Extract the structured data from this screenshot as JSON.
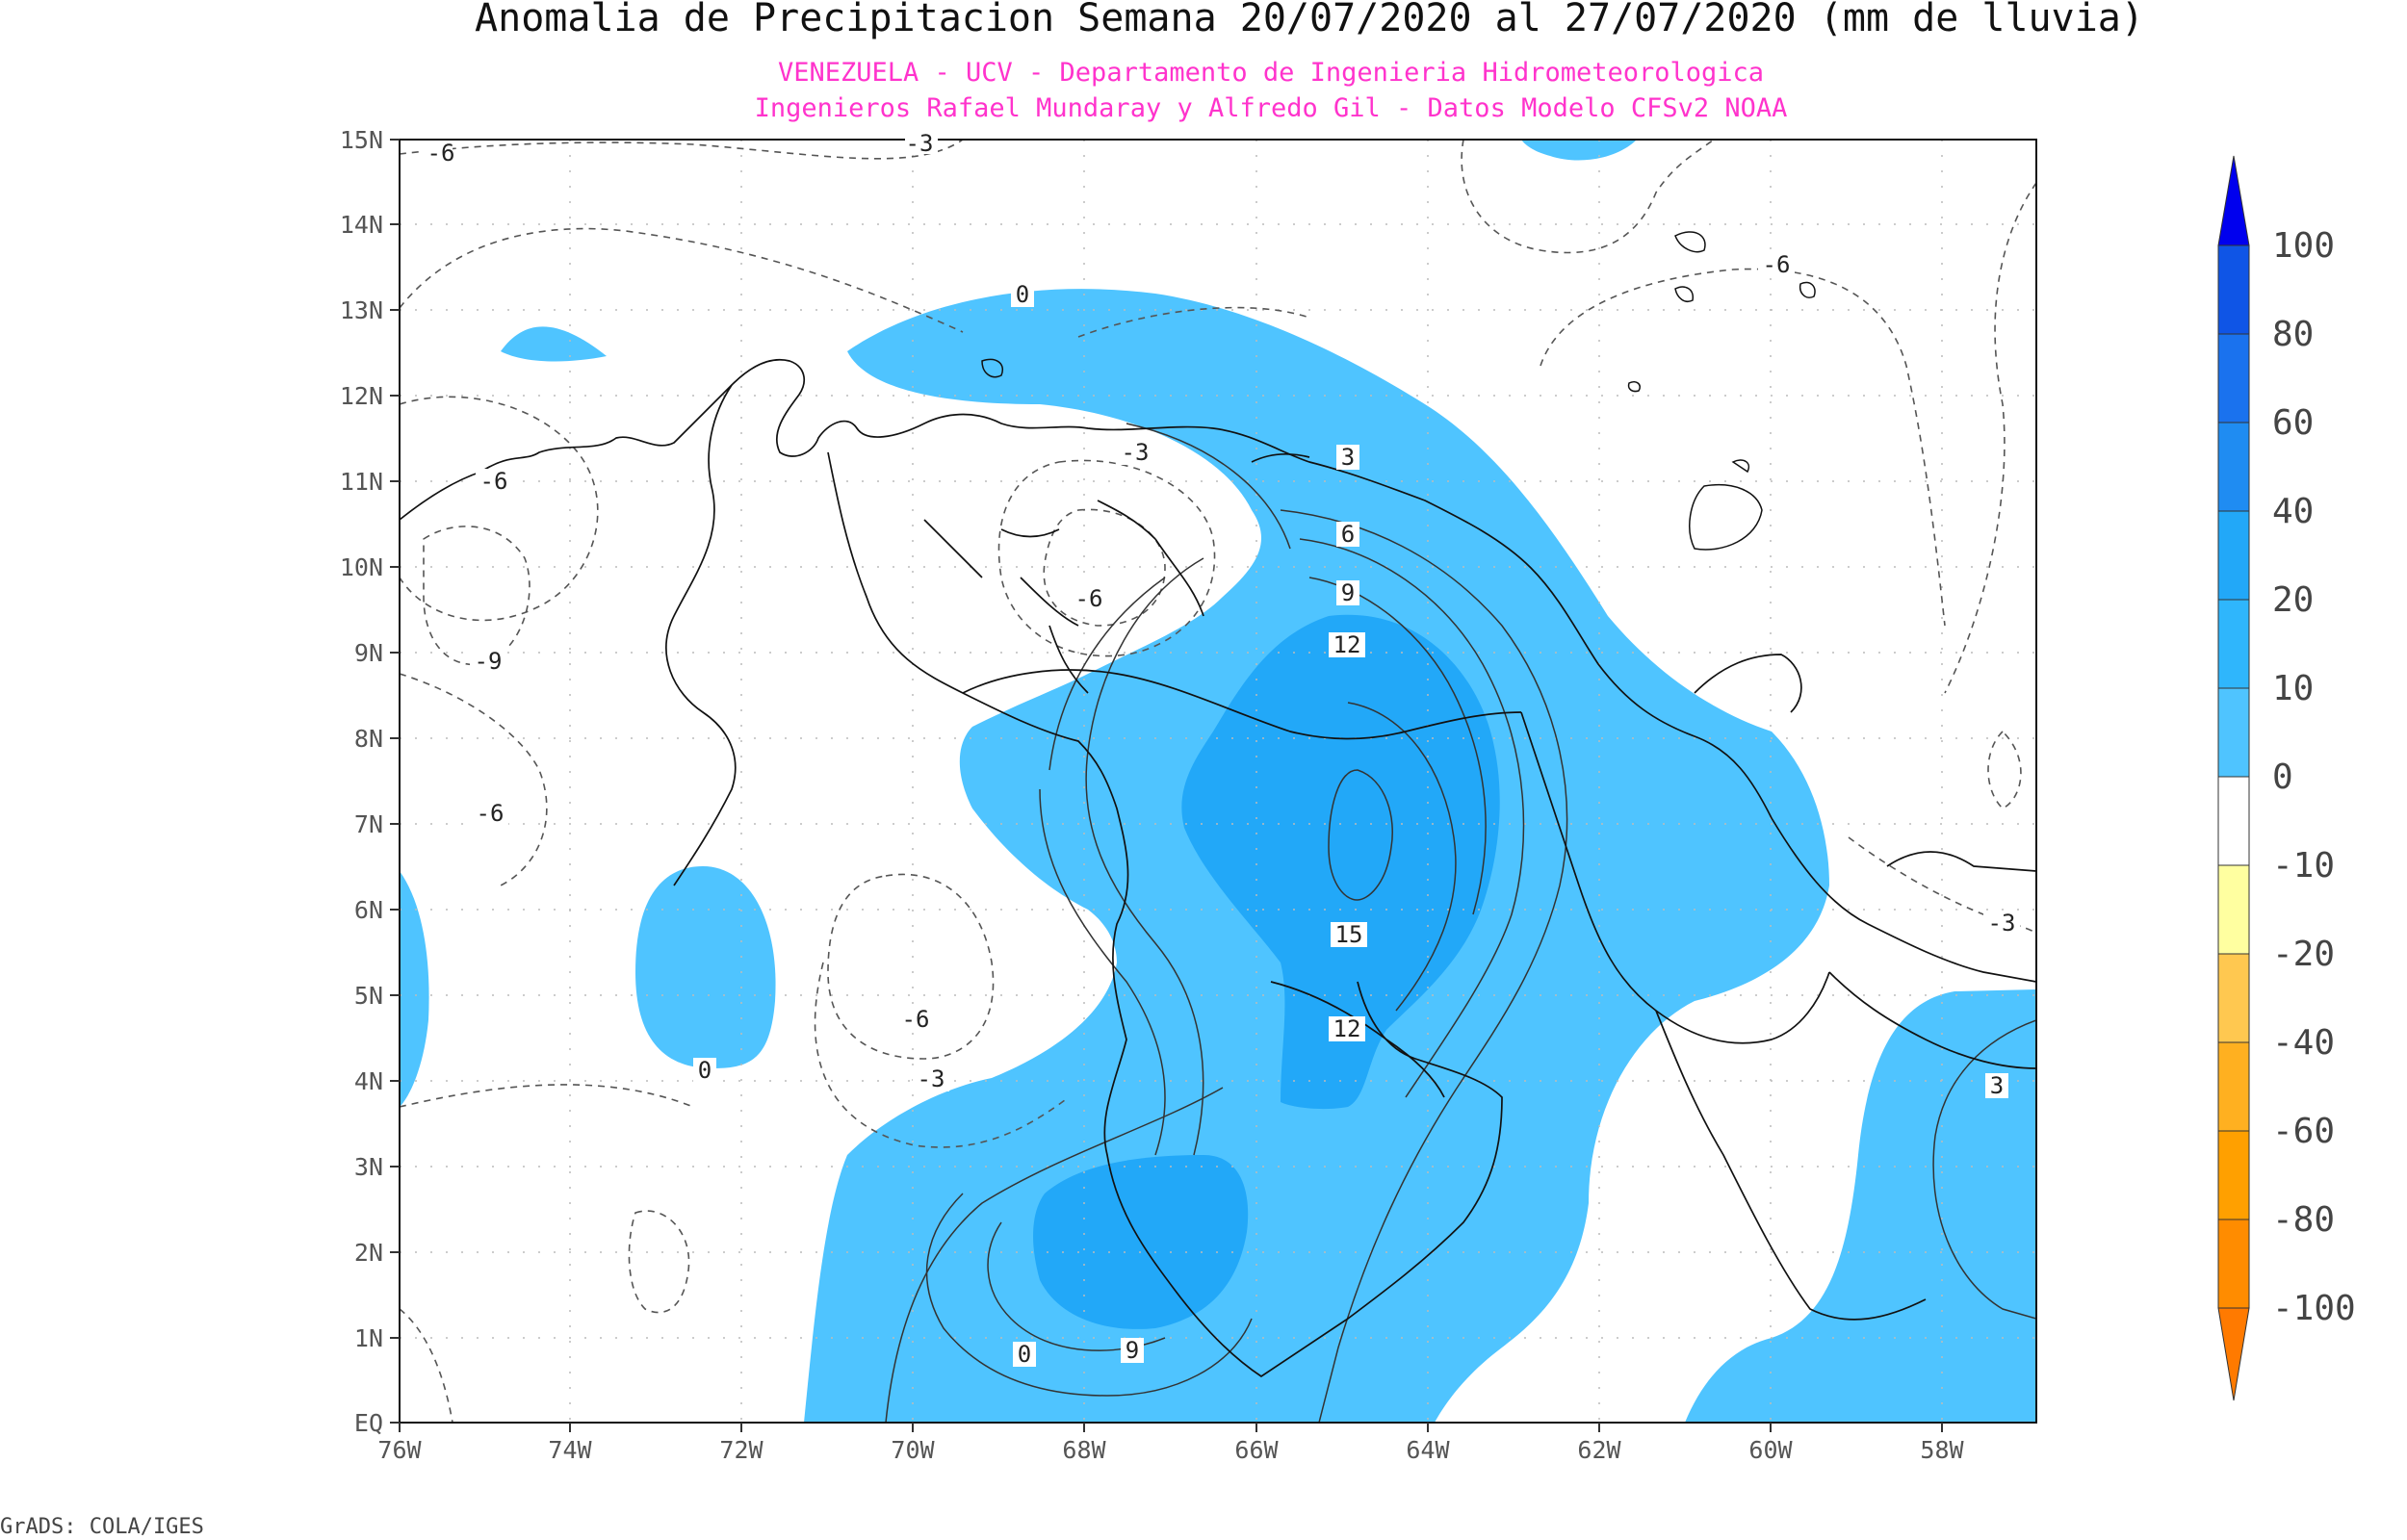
{
  "title": "Anomalia de Precipitacion Semana 20/07/2020 al 27/07/2020 (mm de lluvia)",
  "subtitle_line1": "VENEZUELA - UCV - Departamento de Ingenieria Hidrometeorologica",
  "subtitle_line2": "Ingenieros Rafael Mundaray y Alfredo Gil - Datos Modelo CFSv2 NOAA",
  "footer": "GrADS: COLA/IGES",
  "colors": {
    "title": "#111111",
    "subtitle": "#ff33cc",
    "light_blue": "#4fc4ff",
    "mid_blue": "#22a8f8"
  },
  "x_ticks": [
    "76W",
    "74W",
    "72W",
    "70W",
    "68W",
    "66W",
    "64W",
    "62W",
    "60W",
    "58W"
  ],
  "y_ticks": [
    "EQ",
    "1N",
    "2N",
    "3N",
    "4N",
    "5N",
    "6N",
    "7N",
    "8N",
    "9N",
    "10N",
    "11N",
    "12N",
    "13N",
    "14N",
    "15N"
  ],
  "contour_labels": [
    "-6",
    "-3",
    "0",
    "-6",
    "-9",
    "-6",
    "-3",
    "-6",
    "0",
    "-6",
    "-3",
    "0",
    "3",
    "6",
    "9",
    "12",
    "15",
    "12",
    "9",
    "-6",
    "-3",
    "3"
  ],
  "colorbar": {
    "labels": [
      "100",
      "80",
      "60",
      "40",
      "20",
      "10",
      "0",
      "-10",
      "-20",
      "-40",
      "-60",
      "-80",
      "-100"
    ],
    "colors": [
      "#0000ee",
      "#0f55e6",
      "#1a72ee",
      "#1f8cf2",
      "#22a8f8",
      "#4fc4ff",
      "#ffffff",
      "#ffffa0",
      "#ffee77",
      "#ffc850",
      "#ffb020",
      "#ffa000",
      "#ff8000",
      "#ff7a00"
    ]
  }
}
